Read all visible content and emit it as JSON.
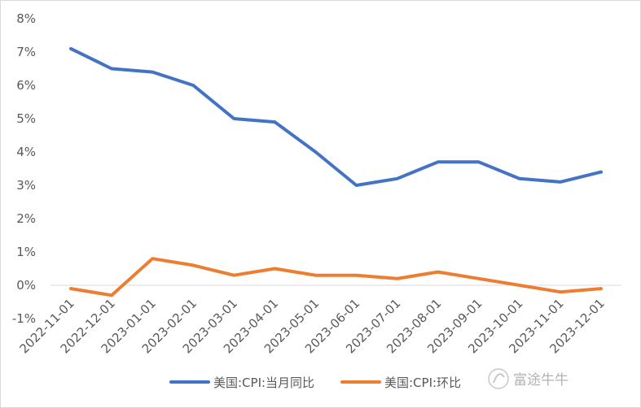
{
  "chart_data": {
    "type": "line",
    "title": "",
    "xlabel": "",
    "ylabel": "",
    "categories": [
      "2022-11-01",
      "2022-12-01",
      "2023-01-01",
      "2023-02-01",
      "2023-03-01",
      "2023-04-01",
      "2023-05-01",
      "2023-06-01",
      "2023-07-01",
      "2023-08-01",
      "2023-09-01",
      "2023-10-01",
      "2023-11-01",
      "2023-12-01"
    ],
    "series": [
      {
        "name": "美国:CPI:当月同比",
        "color": "#4472C4",
        "values": [
          7.1,
          6.5,
          6.4,
          6.0,
          5.0,
          4.9,
          4.0,
          3.0,
          3.2,
          3.7,
          3.7,
          3.2,
          3.1,
          3.4
        ]
      },
      {
        "name": "美国:CPI:环比",
        "color": "#ED7D31",
        "values": [
          -0.1,
          -0.3,
          0.8,
          0.6,
          0.3,
          0.5,
          0.3,
          0.3,
          0.2,
          0.4,
          0.2,
          0.0,
          -0.2,
          -0.1
        ]
      }
    ],
    "ylim": [
      -1,
      8
    ],
    "yticks": [
      "-1%",
      "0%",
      "1%",
      "2%",
      "3%",
      "4%",
      "5%",
      "6%",
      "7%",
      "8%"
    ],
    "grid": false,
    "legend_position": "bottom"
  },
  "watermark": {
    "text": "富途牛牛",
    "icon": "futu-logo-icon"
  }
}
